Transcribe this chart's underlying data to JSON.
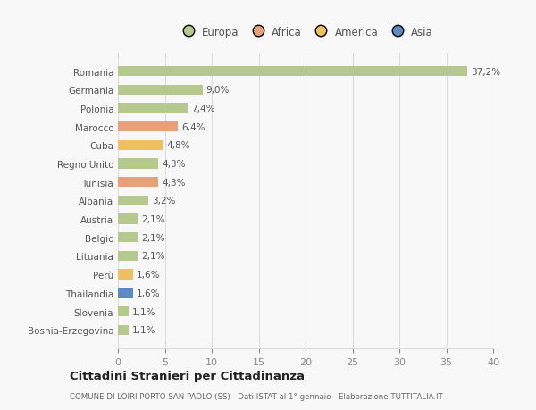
{
  "countries": [
    "Bosnia-Erzegovina",
    "Slovenia",
    "Thailandia",
    "Perù",
    "Lituania",
    "Belgio",
    "Austria",
    "Albania",
    "Tunisia",
    "Regno Unito",
    "Cuba",
    "Marocco",
    "Polonia",
    "Germania",
    "Romania"
  ],
  "values": [
    1.1,
    1.1,
    1.6,
    1.6,
    2.1,
    2.1,
    2.1,
    3.2,
    4.3,
    4.3,
    4.8,
    6.4,
    7.4,
    9.0,
    37.2
  ],
  "labels": [
    "1,1%",
    "1,1%",
    "1,6%",
    "1,6%",
    "2,1%",
    "2,1%",
    "2,1%",
    "3,2%",
    "4,3%",
    "4,3%",
    "4,8%",
    "6,4%",
    "7,4%",
    "9,0%",
    "37,2%"
  ],
  "colors": [
    "#b5c98e",
    "#b5c98e",
    "#5b8ac5",
    "#f0c060",
    "#b5c98e",
    "#b5c98e",
    "#b5c98e",
    "#b5c98e",
    "#e8a07a",
    "#b5c98e",
    "#f0c060",
    "#e8a07a",
    "#b5c98e",
    "#b5c98e",
    "#b5c98e"
  ],
  "legend_labels": [
    "Europa",
    "Africa",
    "America",
    "Asia"
  ],
  "legend_colors": [
    "#b5c98e",
    "#e8a07a",
    "#f0c060",
    "#5b8ac5"
  ],
  "title": "Cittadini Stranieri per Cittadinanza",
  "subtitle": "COMUNE DI LOIRI PORTO SAN PAOLO (SS) - Dati ISTAT al 1° gennaio - Elaborazione TUTTITALIA.IT",
  "xlim": [
    0,
    40
  ],
  "xticks": [
    0,
    5,
    10,
    15,
    20,
    25,
    30,
    35,
    40
  ],
  "bg_color": "#f8f8f8",
  "grid_color": "#dddddd",
  "bar_height": 0.55
}
